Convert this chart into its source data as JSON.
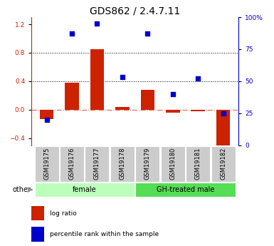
{
  "title": "GDS862 / 2.4.7.11",
  "samples": [
    "GSM19175",
    "GSM19176",
    "GSM19177",
    "GSM19178",
    "GSM19179",
    "GSM19180",
    "GSM19181",
    "GSM19182"
  ],
  "log_ratio": [
    -0.13,
    0.38,
    0.85,
    0.04,
    0.28,
    -0.04,
    -0.02,
    -0.55
  ],
  "percentile_rank": [
    20,
    87,
    95,
    53,
    87,
    40,
    52,
    25
  ],
  "groups": [
    {
      "label": "female",
      "indices": [
        0,
        1,
        2,
        3
      ],
      "color": "#bbffbb"
    },
    {
      "label": "GH-treated male",
      "indices": [
        4,
        5,
        6,
        7
      ],
      "color": "#55dd55"
    }
  ],
  "bar_color": "#cc2200",
  "dot_color": "#0000cc",
  "ylim_left": [
    -0.5,
    1.3
  ],
  "ylim_right": [
    0,
    100
  ],
  "yticks_left": [
    -0.4,
    0.0,
    0.4,
    0.8,
    1.2
  ],
  "yticks_right": [
    0,
    25,
    50,
    75,
    100
  ],
  "hlines": [
    0.4,
    0.8
  ],
  "zero_line": 0.0,
  "bg_color": "#ffffff",
  "plot_bg": "#ffffff",
  "legend_items": [
    "log ratio",
    "percentile rank within the sample"
  ],
  "other_label": "other",
  "title_fontsize": 10,
  "tick_fontsize": 6.5,
  "sample_fontsize": 6,
  "group_fontsize": 7,
  "legend_fontsize": 6.5,
  "bar_width": 0.55
}
